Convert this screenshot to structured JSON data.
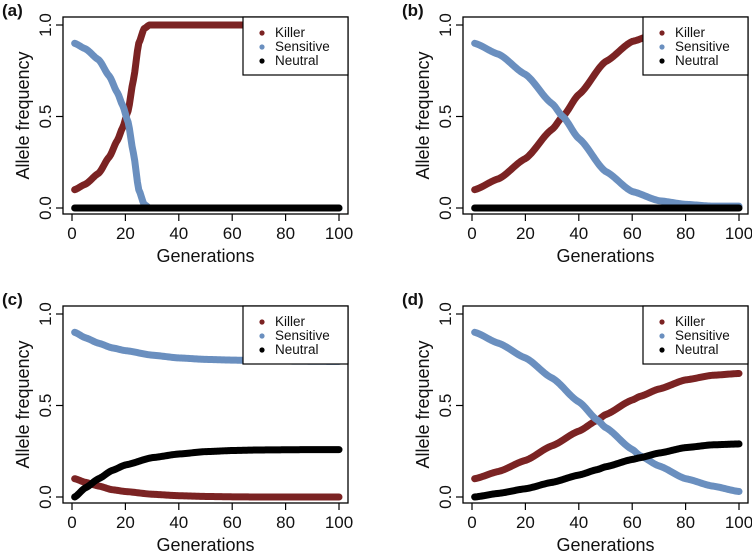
{
  "chart_data": [
    {
      "panel": "(a)",
      "type": "line",
      "title": "",
      "xlabel": "Generations",
      "ylabel": "Allele frequency",
      "xlim": [
        0,
        100
      ],
      "ylim": [
        0,
        1
      ],
      "xticks": [
        "0",
        "20",
        "40",
        "60",
        "80",
        "100"
      ],
      "yticks": [
        "0.0",
        "0.5",
        "1.0"
      ],
      "legend": {
        "position": "top-right",
        "entries": [
          "Killer",
          "Sensitive",
          "Neutral"
        ]
      },
      "x": [
        1,
        5,
        10,
        14,
        17,
        19,
        21,
        23,
        25,
        27,
        29,
        32,
        40,
        60,
        80,
        100
      ],
      "series": [
        {
          "name": "Killer",
          "color": "#7b2323",
          "values": [
            0.1,
            0.13,
            0.19,
            0.28,
            0.37,
            0.44,
            0.53,
            0.7,
            0.9,
            0.98,
            1.0,
            1.0,
            1.0,
            1.0,
            1.0,
            1.0
          ]
        },
        {
          "name": "Sensitive",
          "color": "#6a8fbf",
          "values": [
            0.9,
            0.87,
            0.81,
            0.72,
            0.63,
            0.56,
            0.47,
            0.3,
            0.1,
            0.02,
            0.0,
            0.0,
            0.0,
            0.0,
            0.0,
            0.0
          ]
        },
        {
          "name": "Neutral",
          "color": "#000000",
          "values": [
            0.0,
            0.0,
            0.0,
            0.0,
            0.0,
            0.0,
            0.0,
            0.0,
            0.0,
            0.0,
            0.0,
            0.0,
            0.0,
            0.0,
            0.0,
            0.0
          ]
        }
      ]
    },
    {
      "panel": "(b)",
      "type": "line",
      "title": "",
      "xlabel": "Generations",
      "ylabel": "Allele frequency",
      "xlim": [
        0,
        100
      ],
      "ylim": [
        0,
        1
      ],
      "xticks": [
        "0",
        "20",
        "40",
        "60",
        "80",
        "100"
      ],
      "yticks": [
        "0.0",
        "0.5",
        "1.0"
      ],
      "legend": {
        "position": "top-right",
        "entries": [
          "Killer",
          "Sensitive",
          "Neutral"
        ]
      },
      "x": [
        1,
        10,
        20,
        30,
        34,
        40,
        50,
        60,
        70,
        80,
        90,
        100
      ],
      "series": [
        {
          "name": "Killer",
          "color": "#7b2323",
          "values": [
            0.1,
            0.16,
            0.27,
            0.43,
            0.5,
            0.62,
            0.8,
            0.91,
            0.96,
            0.98,
            0.99,
            0.99
          ]
        },
        {
          "name": "Sensitive",
          "color": "#6a8fbf",
          "values": [
            0.9,
            0.84,
            0.73,
            0.57,
            0.5,
            0.38,
            0.2,
            0.09,
            0.04,
            0.02,
            0.01,
            0.01
          ]
        },
        {
          "name": "Neutral",
          "color": "#000000",
          "values": [
            0.0,
            0.0,
            0.0,
            0.0,
            0.0,
            0.0,
            0.0,
            0.0,
            0.0,
            0.0,
            0.0,
            0.0
          ]
        }
      ]
    },
    {
      "panel": "(c)",
      "type": "line",
      "title": "",
      "xlabel": "Generations",
      "ylabel": "Allele frequency",
      "xlim": [
        0,
        100
      ],
      "ylim": [
        0,
        1
      ],
      "xticks": [
        "0",
        "20",
        "40",
        "60",
        "80",
        "100"
      ],
      "yticks": [
        "0.0",
        "0.5",
        "1.0"
      ],
      "legend": {
        "position": "top-right",
        "entries": [
          "Killer",
          "Sensitive",
          "Neutral"
        ]
      },
      "x": [
        1,
        5,
        10,
        15,
        20,
        30,
        40,
        50,
        60,
        70,
        80,
        90,
        100
      ],
      "series": [
        {
          "name": "Killer",
          "color": "#7b2323",
          "values": [
            0.1,
            0.08,
            0.06,
            0.04,
            0.03,
            0.015,
            0.007,
            0.003,
            0.001,
            0.0,
            0.0,
            0.0,
            0.0
          ]
        },
        {
          "name": "Sensitive",
          "color": "#6a8fbf",
          "values": [
            0.9,
            0.87,
            0.84,
            0.815,
            0.8,
            0.775,
            0.76,
            0.752,
            0.748,
            0.745,
            0.743,
            0.742,
            0.741
          ]
        },
        {
          "name": "Neutral",
          "color": "#000000",
          "values": [
            0.0,
            0.05,
            0.1,
            0.145,
            0.175,
            0.215,
            0.235,
            0.248,
            0.254,
            0.257,
            0.258,
            0.259,
            0.259
          ]
        }
      ]
    },
    {
      "panel": "(d)",
      "type": "line",
      "title": "",
      "xlabel": "Generations",
      "ylabel": "Allele frequency",
      "xlim": [
        0,
        100
      ],
      "ylim": [
        0,
        1
      ],
      "xticks": [
        "0",
        "20",
        "40",
        "60",
        "80",
        "100"
      ],
      "yticks": [
        "0.0",
        "0.5",
        "1.0"
      ],
      "legend": {
        "position": "top-right",
        "entries": [
          "Killer",
          "Sensitive",
          "Neutral"
        ]
      },
      "x": [
        1,
        10,
        20,
        30,
        40,
        47,
        50,
        60,
        63,
        70,
        80,
        90,
        100
      ],
      "series": [
        {
          "name": "Killer",
          "color": "#7b2323",
          "values": [
            0.1,
            0.14,
            0.2,
            0.28,
            0.36,
            0.42,
            0.45,
            0.53,
            0.55,
            0.59,
            0.64,
            0.665,
            0.675
          ]
        },
        {
          "name": "Sensitive",
          "color": "#6a8fbf",
          "values": [
            0.9,
            0.84,
            0.76,
            0.65,
            0.52,
            0.42,
            0.38,
            0.26,
            0.225,
            0.17,
            0.1,
            0.06,
            0.03
          ]
        },
        {
          "name": "Neutral",
          "color": "#000000",
          "values": [
            0.0,
            0.02,
            0.045,
            0.08,
            0.12,
            0.15,
            0.165,
            0.205,
            0.215,
            0.24,
            0.27,
            0.285,
            0.29
          ]
        }
      ]
    }
  ]
}
